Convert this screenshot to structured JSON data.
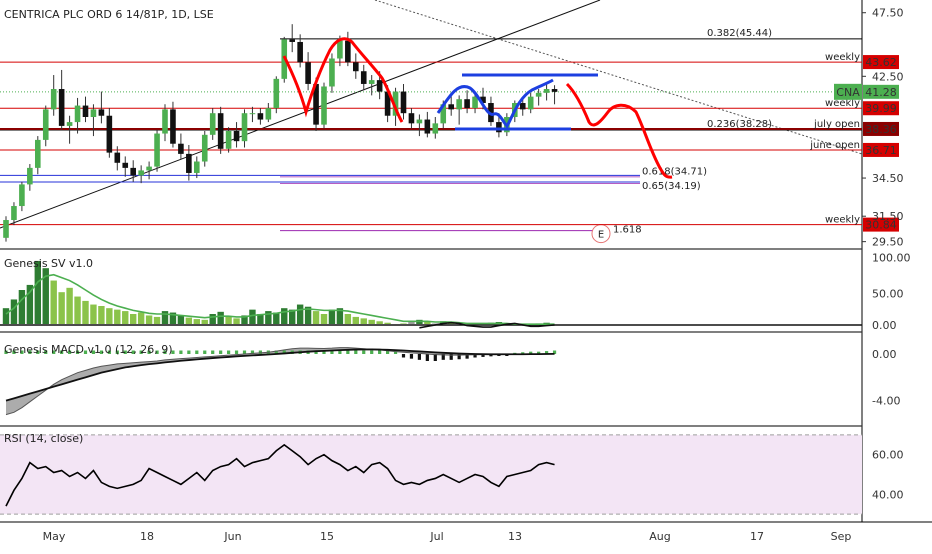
{
  "chart_data": {
    "type": "candlestick",
    "title": "CENTRICA PLC ORD 6 14/81P, 1D, LSE",
    "symbol": "CNA",
    "last_price": "41.28",
    "price_axis": {
      "ticks": [
        "47.50",
        "42.50",
        "34.50",
        "31.50",
        "29.50"
      ],
      "tick_values": [
        47.5,
        42.5,
        34.5,
        31.5,
        29.5
      ],
      "range": [
        29.0,
        48.5
      ]
    },
    "x_axis": {
      "labels": [
        "May",
        "18",
        "Jun",
        "15",
        "Jul",
        "13",
        "Aug",
        "17",
        "Sep"
      ]
    },
    "horizontal_levels": [
      {
        "label": "weekly",
        "value": 43.62,
        "tag": "43.62",
        "color": "#d50000"
      },
      {
        "label": "weekly",
        "value": 39.99,
        "tag": "39.99",
        "color": "#d50000"
      },
      {
        "label": "july open",
        "value": 38.36,
        "tag": "38.36",
        "color": "#8b0000"
      },
      {
        "label": "june open",
        "value": 36.71,
        "tag": "36.71",
        "color": "#d50000"
      },
      {
        "label": "weekly",
        "value": 30.84,
        "tag": "30.84",
        "color": "#d50000"
      }
    ],
    "fib_levels": [
      {
        "label": "0.382(45.44)",
        "value": 45.44,
        "color": "#000000"
      },
      {
        "label": "0.236(38.28)",
        "value": 38.28,
        "color": "#000000"
      },
      {
        "label": "0.618(34.71)",
        "value": 34.71,
        "color": "#2430d8"
      },
      {
        "label": "0.65(34.19)",
        "value": 34.19,
        "color": "#2430d8"
      },
      {
        "label": "1.618",
        "value": 31.0,
        "color": "#9c27b0"
      }
    ],
    "fib_marker": "E",
    "candles": [
      {
        "o": 29.8,
        "h": 31.5,
        "l": 29.5,
        "c": 31.2
      },
      {
        "o": 31.2,
        "h": 32.6,
        "l": 30.8,
        "c": 32.3
      },
      {
        "o": 32.3,
        "h": 34.2,
        "l": 31.9,
        "c": 34.0
      },
      {
        "o": 34.0,
        "h": 35.6,
        "l": 33.5,
        "c": 35.3
      },
      {
        "o": 35.3,
        "h": 37.8,
        "l": 34.8,
        "c": 37.5
      },
      {
        "o": 37.5,
        "h": 40.2,
        "l": 37.0,
        "c": 39.9
      },
      {
        "o": 39.9,
        "h": 42.6,
        "l": 39.4,
        "c": 41.5
      },
      {
        "o": 41.5,
        "h": 43.0,
        "l": 38.3,
        "c": 38.6
      },
      {
        "o": 38.6,
        "h": 39.4,
        "l": 37.2,
        "c": 38.9
      },
      {
        "o": 38.9,
        "h": 40.8,
        "l": 38.0,
        "c": 40.2
      },
      {
        "o": 40.2,
        "h": 40.9,
        "l": 38.9,
        "c": 39.3
      },
      {
        "o": 39.3,
        "h": 40.3,
        "l": 37.8,
        "c": 39.9
      },
      {
        "o": 39.9,
        "h": 41.3,
        "l": 38.8,
        "c": 39.4
      },
      {
        "o": 39.4,
        "h": 40.0,
        "l": 36.1,
        "c": 36.5
      },
      {
        "o": 36.5,
        "h": 37.0,
        "l": 35.1,
        "c": 35.7
      },
      {
        "o": 35.7,
        "h": 36.2,
        "l": 34.6,
        "c": 35.3
      },
      {
        "o": 35.3,
        "h": 35.9,
        "l": 34.2,
        "c": 34.7
      },
      {
        "o": 34.7,
        "h": 35.5,
        "l": 34.1,
        "c": 35.1
      },
      {
        "o": 35.1,
        "h": 35.8,
        "l": 34.4,
        "c": 35.4
      },
      {
        "o": 35.4,
        "h": 38.3,
        "l": 35.0,
        "c": 38.0
      },
      {
        "o": 38.0,
        "h": 40.3,
        "l": 37.4,
        "c": 39.9
      },
      {
        "o": 39.9,
        "h": 40.5,
        "l": 36.9,
        "c": 37.2
      },
      {
        "o": 37.2,
        "h": 38.0,
        "l": 36.0,
        "c": 36.4
      },
      {
        "o": 36.4,
        "h": 37.1,
        "l": 34.3,
        "c": 34.9
      },
      {
        "o": 34.9,
        "h": 36.2,
        "l": 34.5,
        "c": 35.8
      },
      {
        "o": 35.8,
        "h": 38.2,
        "l": 35.4,
        "c": 37.9
      },
      {
        "o": 37.9,
        "h": 40.0,
        "l": 37.5,
        "c": 39.6
      },
      {
        "o": 39.6,
        "h": 40.1,
        "l": 36.4,
        "c": 36.8
      },
      {
        "o": 36.8,
        "h": 38.5,
        "l": 36.5,
        "c": 38.2
      },
      {
        "o": 38.2,
        "h": 38.9,
        "l": 36.9,
        "c": 37.4
      },
      {
        "o": 37.4,
        "h": 39.9,
        "l": 36.9,
        "c": 39.6
      },
      {
        "o": 39.6,
        "h": 40.1,
        "l": 38.9,
        "c": 39.6
      },
      {
        "o": 39.6,
        "h": 40.0,
        "l": 38.7,
        "c": 39.1
      },
      {
        "o": 39.1,
        "h": 40.4,
        "l": 38.9,
        "c": 40.0
      },
      {
        "o": 40.0,
        "h": 42.5,
        "l": 39.6,
        "c": 42.3
      },
      {
        "o": 42.3,
        "h": 45.6,
        "l": 42.0,
        "c": 45.4
      },
      {
        "o": 45.4,
        "h": 46.6,
        "l": 44.4,
        "c": 45.2
      },
      {
        "o": 45.2,
        "h": 45.8,
        "l": 43.2,
        "c": 43.6
      },
      {
        "o": 43.6,
        "h": 44.4,
        "l": 41.4,
        "c": 41.9
      },
      {
        "o": 41.9,
        "h": 42.4,
        "l": 38.2,
        "c": 38.7
      },
      {
        "o": 38.7,
        "h": 42.0,
        "l": 38.4,
        "c": 41.7
      },
      {
        "o": 41.7,
        "h": 44.3,
        "l": 41.2,
        "c": 43.9
      },
      {
        "o": 43.9,
        "h": 45.7,
        "l": 43.3,
        "c": 45.3
      },
      {
        "o": 45.3,
        "h": 46.0,
        "l": 43.3,
        "c": 43.6
      },
      {
        "o": 43.6,
        "h": 44.3,
        "l": 42.3,
        "c": 42.9
      },
      {
        "o": 42.9,
        "h": 43.4,
        "l": 41.4,
        "c": 41.9
      },
      {
        "o": 41.9,
        "h": 42.6,
        "l": 41.0,
        "c": 42.2
      },
      {
        "o": 42.2,
        "h": 42.9,
        "l": 40.7,
        "c": 41.3
      },
      {
        "o": 41.3,
        "h": 41.8,
        "l": 38.9,
        "c": 39.4
      },
      {
        "o": 39.4,
        "h": 41.6,
        "l": 38.6,
        "c": 41.3
      },
      {
        "o": 41.3,
        "h": 41.9,
        "l": 39.1,
        "c": 39.6
      },
      {
        "o": 39.6,
        "h": 40.0,
        "l": 38.4,
        "c": 38.8
      },
      {
        "o": 38.8,
        "h": 39.5,
        "l": 37.8,
        "c": 39.1
      },
      {
        "o": 39.1,
        "h": 39.7,
        "l": 37.7,
        "c": 38.0
      },
      {
        "o": 38.0,
        "h": 39.3,
        "l": 37.6,
        "c": 38.8
      },
      {
        "o": 38.8,
        "h": 40.6,
        "l": 38.4,
        "c": 40.3
      },
      {
        "o": 40.3,
        "h": 41.1,
        "l": 39.4,
        "c": 39.9
      },
      {
        "o": 39.9,
        "h": 41.0,
        "l": 38.7,
        "c": 40.7
      },
      {
        "o": 40.7,
        "h": 41.4,
        "l": 39.6,
        "c": 40.0
      },
      {
        "o": 40.0,
        "h": 41.2,
        "l": 39.6,
        "c": 40.9
      },
      {
        "o": 40.9,
        "h": 41.6,
        "l": 39.9,
        "c": 40.4
      },
      {
        "o": 40.4,
        "h": 40.9,
        "l": 38.6,
        "c": 38.9
      },
      {
        "o": 38.9,
        "h": 39.6,
        "l": 37.7,
        "c": 38.1
      },
      {
        "o": 38.1,
        "h": 39.6,
        "l": 37.8,
        "c": 39.3
      },
      {
        "o": 39.3,
        "h": 40.6,
        "l": 38.9,
        "c": 40.4
      },
      {
        "o": 40.4,
        "h": 40.9,
        "l": 39.4,
        "c": 39.9
      },
      {
        "o": 39.9,
        "h": 41.2,
        "l": 39.6,
        "c": 40.9
      },
      {
        "o": 40.9,
        "h": 41.5,
        "l": 40.2,
        "c": 41.2
      },
      {
        "o": 41.2,
        "h": 41.9,
        "l": 40.6,
        "c": 41.5
      },
      {
        "o": 41.5,
        "h": 41.8,
        "l": 40.3,
        "c": 41.28
      }
    ],
    "sv": {
      "title": "Genesis SV v1.0",
      "ticks": [
        "100.00",
        "50.00",
        "0.00"
      ],
      "tick_values": [
        100,
        50,
        0
      ],
      "range": [
        0,
        110
      ],
      "volume": [
        30,
        42,
        55,
        62,
        95,
        85,
        68,
        52,
        58,
        46,
        40,
        35,
        33,
        30,
        28,
        26,
        22,
        24,
        20,
        18,
        26,
        24,
        20,
        17,
        15,
        14,
        22,
        25,
        18,
        16,
        20,
        28,
        22,
        26,
        24,
        30,
        28,
        35,
        32,
        26,
        22,
        28,
        30,
        22,
        18,
        16,
        14,
        12,
        10,
        8,
        9,
        12,
        14,
        11,
        9,
        12,
        10,
        8,
        7,
        9,
        8,
        10,
        11,
        8,
        6,
        7,
        8,
        9,
        10,
        8
      ],
      "signal": [
        22,
        30,
        42,
        52,
        66,
        74,
        76,
        72,
        68,
        62,
        55,
        48,
        42,
        37,
        33,
        30,
        27,
        25,
        23,
        22,
        22,
        21,
        20,
        19,
        18,
        17,
        18,
        19,
        19,
        18,
        18,
        20,
        21,
        22,
        23,
        25,
        26,
        28,
        29,
        28,
        27,
        27,
        27,
        26,
        24,
        22,
        20,
        18,
        16,
        14,
        12,
        12,
        12,
        12,
        11,
        11,
        11,
        10,
        9,
        9,
        9,
        9,
        9,
        9,
        8,
        8,
        8,
        8,
        8,
        8
      ],
      "dark_line": [
        null,
        null,
        null,
        null,
        null,
        null,
        null,
        null,
        null,
        null,
        null,
        null,
        null,
        null,
        null,
        null,
        null,
        null,
        null,
        null,
        null,
        null,
        null,
        null,
        null,
        null,
        null,
        null,
        null,
        null,
        null,
        null,
        null,
        null,
        null,
        null,
        null,
        null,
        null,
        null,
        null,
        null,
        null,
        null,
        null,
        null,
        null,
        null,
        null,
        null,
        null,
        null,
        3,
        5,
        7,
        9,
        10,
        9,
        6,
        5,
        4,
        4,
        6,
        8,
        9,
        7,
        5,
        5,
        6,
        7
      ]
    },
    "macd": {
      "title": "Genesis MACD v1.0 (12, 26, 9)",
      "ticks": [
        "0.00",
        "-4.00"
      ],
      "tick_values": [
        0,
        -4
      ],
      "range": [
        -6.0,
        1.8
      ],
      "macd": [
        -5.2,
        -5.0,
        -4.6,
        -4.1,
        -3.6,
        -3.1,
        -2.6,
        -2.2,
        -1.9,
        -1.6,
        -1.4,
        -1.2,
        -1.05,
        -0.95,
        -0.85,
        -0.8,
        -0.75,
        -0.7,
        -0.65,
        -0.6,
        -0.5,
        -0.45,
        -0.4,
        -0.35,
        -0.3,
        -0.25,
        -0.2,
        -0.15,
        -0.1,
        -0.05,
        0.0,
        0.05,
        0.1,
        0.15,
        0.25,
        0.35,
        0.45,
        0.5,
        0.5,
        0.48,
        0.47,
        0.5,
        0.55,
        0.55,
        0.5,
        0.45,
        0.4,
        0.35,
        0.28,
        0.2,
        0.15,
        0.1,
        0.05,
        0.0,
        -0.05,
        -0.08,
        -0.1,
        -0.1,
        -0.08,
        -0.06,
        -0.05,
        -0.05,
        -0.05,
        -0.04,
        -0.03,
        -0.02,
        -0.01,
        0.0,
        0.02,
        0.03
      ],
      "signal": [
        -4.0,
        -3.8,
        -3.6,
        -3.4,
        -3.2,
        -3.0,
        -2.8,
        -2.6,
        -2.4,
        -2.2,
        -2.0,
        -1.8,
        -1.6,
        -1.45,
        -1.3,
        -1.15,
        -1.05,
        -0.95,
        -0.87,
        -0.8,
        -0.72,
        -0.65,
        -0.58,
        -0.52,
        -0.46,
        -0.4,
        -0.35,
        -0.3,
        -0.25,
        -0.2,
        -0.16,
        -0.12,
        -0.08,
        -0.04,
        0.0,
        0.05,
        0.1,
        0.15,
        0.2,
        0.24,
        0.27,
        0.3,
        0.33,
        0.36,
        0.38,
        0.39,
        0.39,
        0.38,
        0.36,
        0.33,
        0.3,
        0.26,
        0.22,
        0.18,
        0.14,
        0.1,
        0.07,
        0.04,
        0.02,
        0.0,
        -0.01,
        -0.02,
        -0.02,
        -0.02,
        -0.02,
        -0.02,
        -0.01,
        -0.01,
        0.0,
        0.01
      ],
      "hist": [
        0.3,
        0.3,
        0.3,
        0.3,
        0.3,
        0.3,
        0.3,
        0.3,
        0.3,
        0.3,
        0.3,
        0.3,
        0.3,
        0.3,
        0.3,
        0.3,
        0.3,
        0.3,
        0.3,
        0.3,
        0.3,
        0.3,
        0.3,
        0.3,
        0.3,
        0.3,
        0.3,
        0.3,
        0.3,
        0.3,
        0.3,
        0.3,
        0.3,
        0.3,
        0.3,
        0.3,
        0.3,
        0.3,
        0.3,
        0.3,
        0.3,
        0.3,
        0.3,
        0.3,
        0.3,
        0.3,
        0.3,
        0.3,
        0.3,
        0.3,
        -0.3,
        -0.4,
        -0.5,
        -0.6,
        -0.6,
        -0.5,
        -0.5,
        -0.45,
        -0.4,
        -0.3,
        -0.25,
        -0.2,
        -0.15,
        -0.1,
        0.1,
        0.15,
        0.2,
        0.2,
        0.25,
        0.3
      ]
    },
    "rsi": {
      "title": "RSI (14, close)",
      "ticks": [
        "60.00",
        "40.00"
      ],
      "tick_values": [
        60,
        40
      ],
      "range": [
        26,
        74
      ],
      "upper_band": 70,
      "lower_band": 30,
      "values": [
        34,
        42,
        48,
        56,
        53,
        54,
        51,
        52,
        49,
        51,
        48,
        52,
        46,
        44,
        43,
        44,
        45,
        47,
        53,
        51,
        49,
        47,
        45,
        48,
        51,
        47,
        52,
        54,
        55,
        58,
        54,
        56,
        57,
        58,
        62,
        65,
        62,
        59,
        55,
        58,
        60,
        57,
        55,
        52,
        54,
        51,
        55,
        56,
        53,
        47,
        45,
        46,
        45,
        47,
        48,
        50,
        48,
        46,
        48,
        50,
        49,
        46,
        44,
        49,
        50,
        51,
        52,
        55,
        56,
        55
      ]
    },
    "annotation_colors": {
      "projection": "#ff0000",
      "pattern": "#1c3fe0",
      "trendline": "#000000",
      "sv_up": "#2e7d32",
      "sv_light": "#8bc34a",
      "sv_grey": "#9e9e9e",
      "sv_signal": "#4caf50",
      "rsi_band": "#f3e5f5",
      "rsi_line": "#000000",
      "price_tag": "#4caf50"
    }
  }
}
